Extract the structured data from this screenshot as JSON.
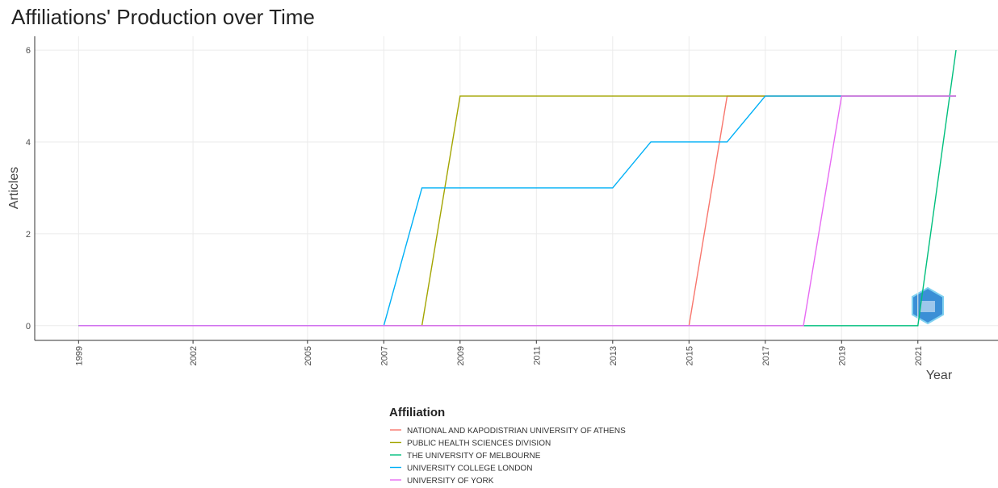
{
  "chart_data": {
    "type": "line",
    "title": "Affiliations' Production over Time",
    "x_label": "Year",
    "y_label": "Articles",
    "legend_title": "Affiliation",
    "x": [
      1999,
      2000,
      2001,
      2002,
      2003,
      2004,
      2005,
      2006,
      2007,
      2008,
      2009,
      2010,
      2011,
      2012,
      2013,
      2014,
      2015,
      2016,
      2017,
      2018,
      2019,
      2020,
      2021,
      2022
    ],
    "series": [
      {
        "name": "NATIONAL AND KAPODISTRIAN UNIVERSITY OF ATHENS",
        "color": "#F8766D",
        "values": [
          0,
          0,
          0,
          0,
          0,
          0,
          0,
          0,
          0,
          0,
          0,
          0,
          0,
          0,
          0,
          0,
          0,
          5,
          5,
          5,
          5,
          5,
          5,
          5
        ]
      },
      {
        "name": "PUBLIC HEALTH SCIENCES DIVISION",
        "color": "#A3A500",
        "values": [
          0,
          0,
          0,
          0,
          0,
          0,
          0,
          0,
          0,
          0,
          5,
          5,
          5,
          5,
          5,
          5,
          5,
          5,
          5,
          5,
          5,
          5,
          5,
          5
        ]
      },
      {
        "name": "THE UNIVERSITY OF MELBOURNE",
        "color": "#00BF7D",
        "values": [
          0,
          0,
          0,
          0,
          0,
          0,
          0,
          0,
          0,
          0,
          0,
          0,
          0,
          0,
          0,
          0,
          0,
          0,
          0,
          0,
          0,
          0,
          0,
          6
        ]
      },
      {
        "name": "UNIVERSITY COLLEGE LONDON",
        "color": "#00B0F6",
        "values": [
          0,
          0,
          0,
          0,
          0,
          0,
          0,
          0,
          0,
          3,
          3,
          3,
          3,
          3,
          3,
          4,
          4,
          4,
          5,
          5,
          5,
          5,
          5,
          5
        ]
      },
      {
        "name": "UNIVERSITY OF YORK",
        "color": "#E76BF3",
        "values": [
          0,
          0,
          0,
          0,
          0,
          0,
          0,
          0,
          0,
          0,
          0,
          0,
          0,
          0,
          0,
          0,
          0,
          0,
          0,
          0,
          5,
          5,
          5,
          5
        ]
      }
    ],
    "xlim": [
      1997.85,
      2023.1
    ],
    "ylim": [
      -0.32,
      6.3
    ],
    "xticks": [
      1999,
      2002,
      2005,
      2007,
      2009,
      2011,
      2013,
      2015,
      2017,
      2019,
      2021
    ],
    "yticks": [
      0,
      2,
      4,
      6
    ],
    "grid": true
  }
}
